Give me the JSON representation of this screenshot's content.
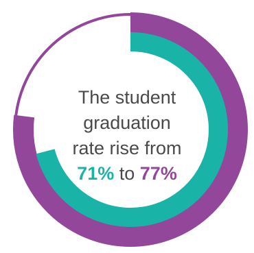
{
  "caption": {
    "line1": "The student",
    "line2": "graduation",
    "line3": "rate rise from",
    "from_value": "71%",
    "connector": "to",
    "to_value": "77%"
  },
  "chart_data": {
    "type": "pie",
    "title": "",
    "series": [
      {
        "label": "71%",
        "value": 71,
        "color": "#1ab3a8"
      },
      {
        "label": "77%",
        "value": 77,
        "color": "#93479b"
      }
    ],
    "remainder_color": "#ffffff"
  }
}
